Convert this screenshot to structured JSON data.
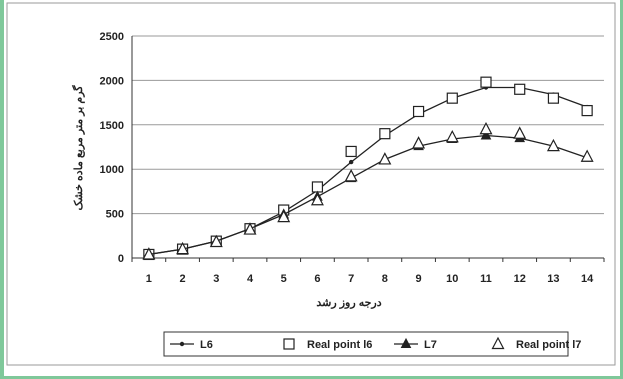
{
  "chart_data": {
    "type": "line",
    "categories": [
      "1",
      "2",
      "3",
      "4",
      "5",
      "6",
      "7",
      "8",
      "9",
      "10",
      "11",
      "12",
      "13",
      "14"
    ],
    "x": [
      1,
      2,
      3,
      4,
      5,
      6,
      7,
      8,
      9,
      10,
      11,
      12,
      13,
      14
    ],
    "ylim": [
      0,
      2500
    ],
    "yticks": [
      0,
      500,
      1000,
      1500,
      2000,
      2500
    ],
    "ylabel": "گرم بر متر مربع ماده خشک",
    "xlabel": "درجه روز رشد",
    "grid": true,
    "legend_position": "bottom",
    "series": [
      {
        "name": "L6",
        "style": "line-dot",
        "values": [
          40,
          100,
          190,
          330,
          520,
          760,
          1080,
          1380,
          1620,
          1800,
          1920,
          1920,
          1840,
          1700
        ]
      },
      {
        "name": "Real point l6",
        "style": "open-square",
        "values": [
          40,
          100,
          190,
          330,
          540,
          800,
          1200,
          1400,
          1650,
          1800,
          1980,
          1900,
          1800,
          1660
        ]
      },
      {
        "name": "L7",
        "style": "line-triangle",
        "values": [
          40,
          100,
          190,
          330,
          490,
          690,
          900,
          1110,
          1260,
          1340,
          1380,
          1350,
          1260,
          1130
        ]
      },
      {
        "name": "Real point l7",
        "style": "open-triangle",
        "values": [
          40,
          100,
          180,
          320,
          460,
          650,
          920,
          1110,
          1290,
          1360,
          1450,
          1400,
          1260,
          1140
        ]
      }
    ],
    "colors": {
      "line": "#222222",
      "grid": "#9a9a9a",
      "frame_border": "#7fc89a"
    }
  }
}
